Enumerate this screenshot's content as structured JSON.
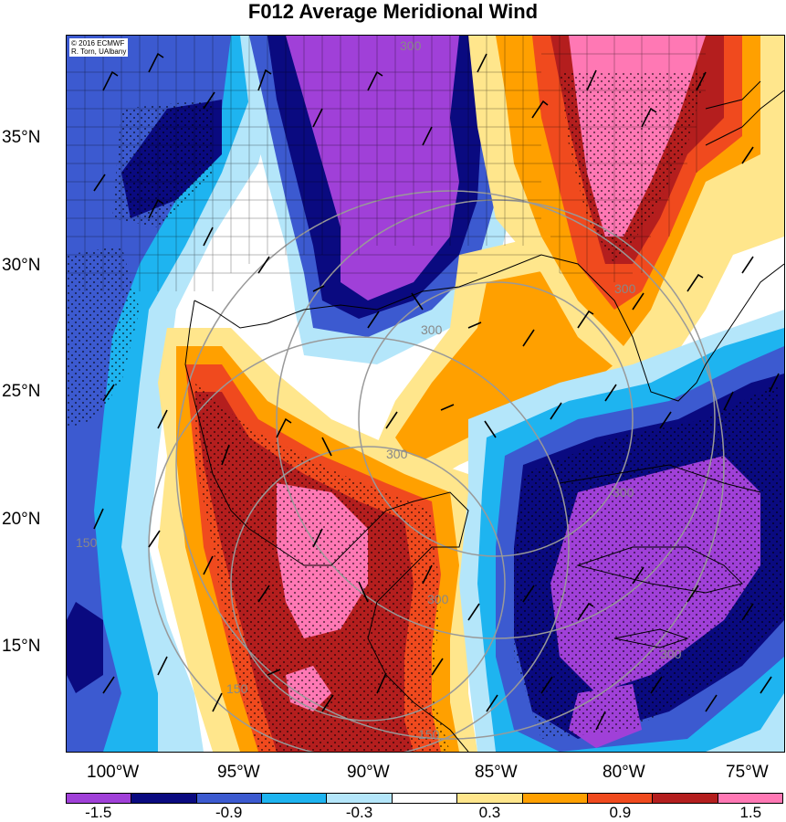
{
  "title": "F012 Average Meridional Wind",
  "credit": {
    "line1": "© 2016 ECMWF",
    "line2": "R. Torn, UAlbany"
  },
  "lat_labels": [
    "35°N",
    "30°N",
    "25°N",
    "20°N",
    "15°N"
  ],
  "lon_labels": [
    "100°W",
    "95°W",
    "90°W",
    "85°W",
    "80°W",
    "75°W"
  ],
  "legend": {
    "colors": [
      "#a040d8",
      "#0a0a80",
      "#3c5ad0",
      "#1eb4f0",
      "#b4e6fa",
      "#ffffff",
      "#ffe68c",
      "#ffa000",
      "#f04a1e",
      "#b41e1e",
      "#ff78b4"
    ],
    "tick_labels": [
      "-1.5",
      "-0.9",
      "-0.3",
      "0.3",
      "0.9",
      "1.5"
    ]
  },
  "contour_labels": [
    "300",
    "300",
    "300",
    "300",
    "300",
    "300",
    "150",
    "150",
    "150",
    "300"
  ]
}
